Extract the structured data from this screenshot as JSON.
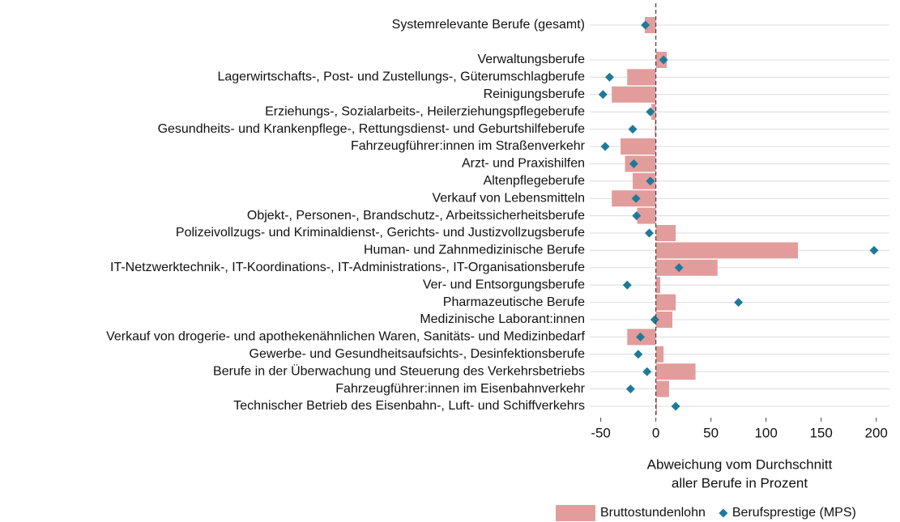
{
  "chart_data": {
    "type": "bar",
    "orientation": "horizontal",
    "categories": [
      "Systemrelevante Berufe (gesamt)",
      "Verwaltungsberufe",
      "Lagerwirtschafts-, Post- und Zustellungs-, Güterumschlagberufe",
      "Reinigungsberufe",
      "Erziehungs-, Sozialarbeits-, Heilerziehungspflegeberufe",
      "Gesundheits- und Krankenpflege-, Rettungsdienst- und Geburtshilfeberufe",
      "Fahrzeugführer:innen im Straßenverkehr",
      "Arzt- und Praxishilfen",
      "Altenpflegeberufe",
      "Verkauf von Lebensmitteln",
      "Objekt-, Personen-, Brandschutz-, Arbeitssicherheitsberufe",
      "Polizeivollzugs- und Kriminaldienst-, Gerichts- und Justizvollzugsberufe",
      "Human- und Zahnmedizinische Berufe",
      "IT-Netzwerktechnik-, IT-Koordinations-, IT-Administrations-, IT-Organisationsberufe",
      "Ver- und Entsorgungsberufe",
      "Pharmazeutische Berufe",
      "Medizinische Laborant:innen",
      "Verkauf von drogerie- und apothekenähnlichen Waren, Sanitäts- und Medizinbedarf",
      "Gewerbe- und Gesundheitsaufsichts-, Desinfektionsberufe",
      "Berufe in der Überwachung und Steuerung des Verkehrsbetriebs",
      "Fahrzeugführer:innen im Eisenbahnverkehr",
      "Technischer Betrieb des Eisenbahn-, Luft- und Schiffverkehrs"
    ],
    "series": [
      {
        "name": "Bruttostundenlohn",
        "color": "#e39c9c",
        "mark": "bar",
        "values": [
          -10,
          10,
          -26,
          -40,
          -4,
          -1,
          -32,
          -28,
          -21,
          -40,
          -17,
          18,
          129,
          56,
          4,
          18,
          15,
          -26,
          7,
          36,
          12,
          1
        ]
      },
      {
        "name": "Berufsprestige (MPS)",
        "color": "#1f7a99",
        "mark": "diamond",
        "values": [
          -9.5,
          7,
          -42,
          -48,
          -5,
          -21,
          -46,
          -20,
          -5,
          -18,
          -17.5,
          -6,
          198,
          21,
          -26,
          75,
          -1,
          -14,
          -16,
          -8,
          -23,
          18
        ]
      }
    ],
    "xlabel": [
      "Abweichung vom Durchschnitt",
      "aller Berufe in Prozent"
    ],
    "xlim": [
      -60,
      212
    ],
    "xticks": [
      -50,
      0,
      50,
      100,
      150,
      200
    ],
    "grid": true,
    "legend": "bottom-right"
  }
}
